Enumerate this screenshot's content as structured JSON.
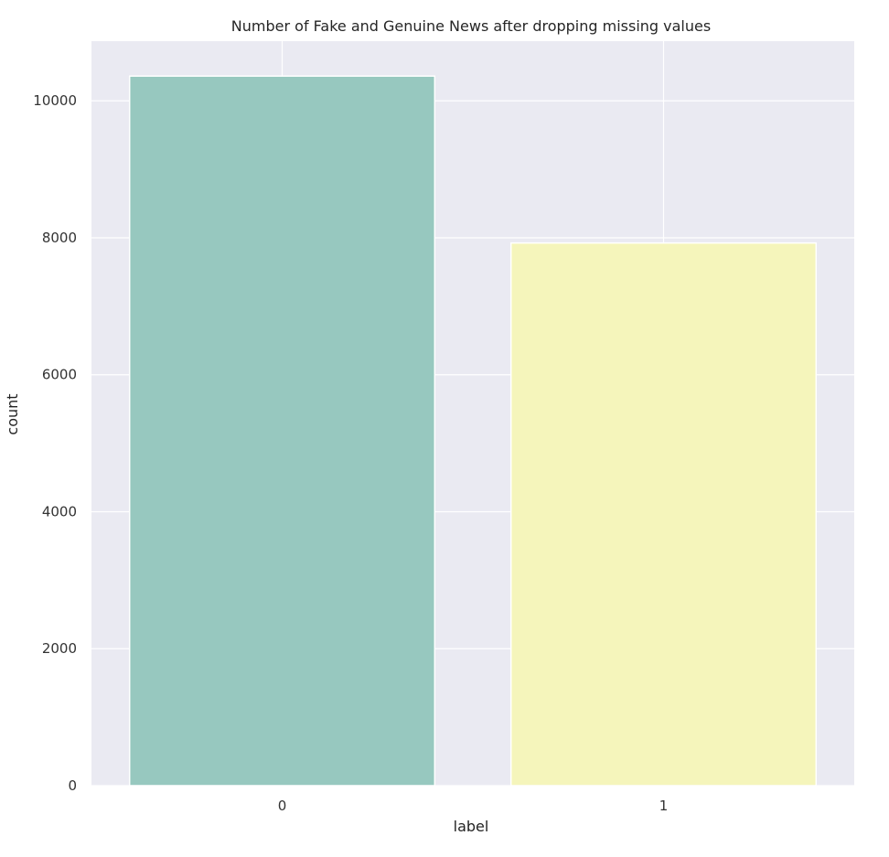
{
  "chart_data": {
    "type": "bar",
    "title": "Number of Fake and Genuine News after dropping missing values",
    "xlabel": "label",
    "ylabel": "count",
    "categories": [
      "0",
      "1"
    ],
    "values": [
      10361,
      7924
    ],
    "ylim": [
      0,
      10871
    ],
    "yticks": [
      0,
      2000,
      4000,
      6000,
      8000,
      10000
    ],
    "yticklabels": [
      "0",
      "2000",
      "4000",
      "6000",
      "8000",
      "10000"
    ],
    "grid": true,
    "legend": "none",
    "colors": {
      "background": "#eaeaf2",
      "grid": "#ffffff",
      "bars": [
        "#97c8bf",
        "#f5f5bb"
      ]
    }
  }
}
